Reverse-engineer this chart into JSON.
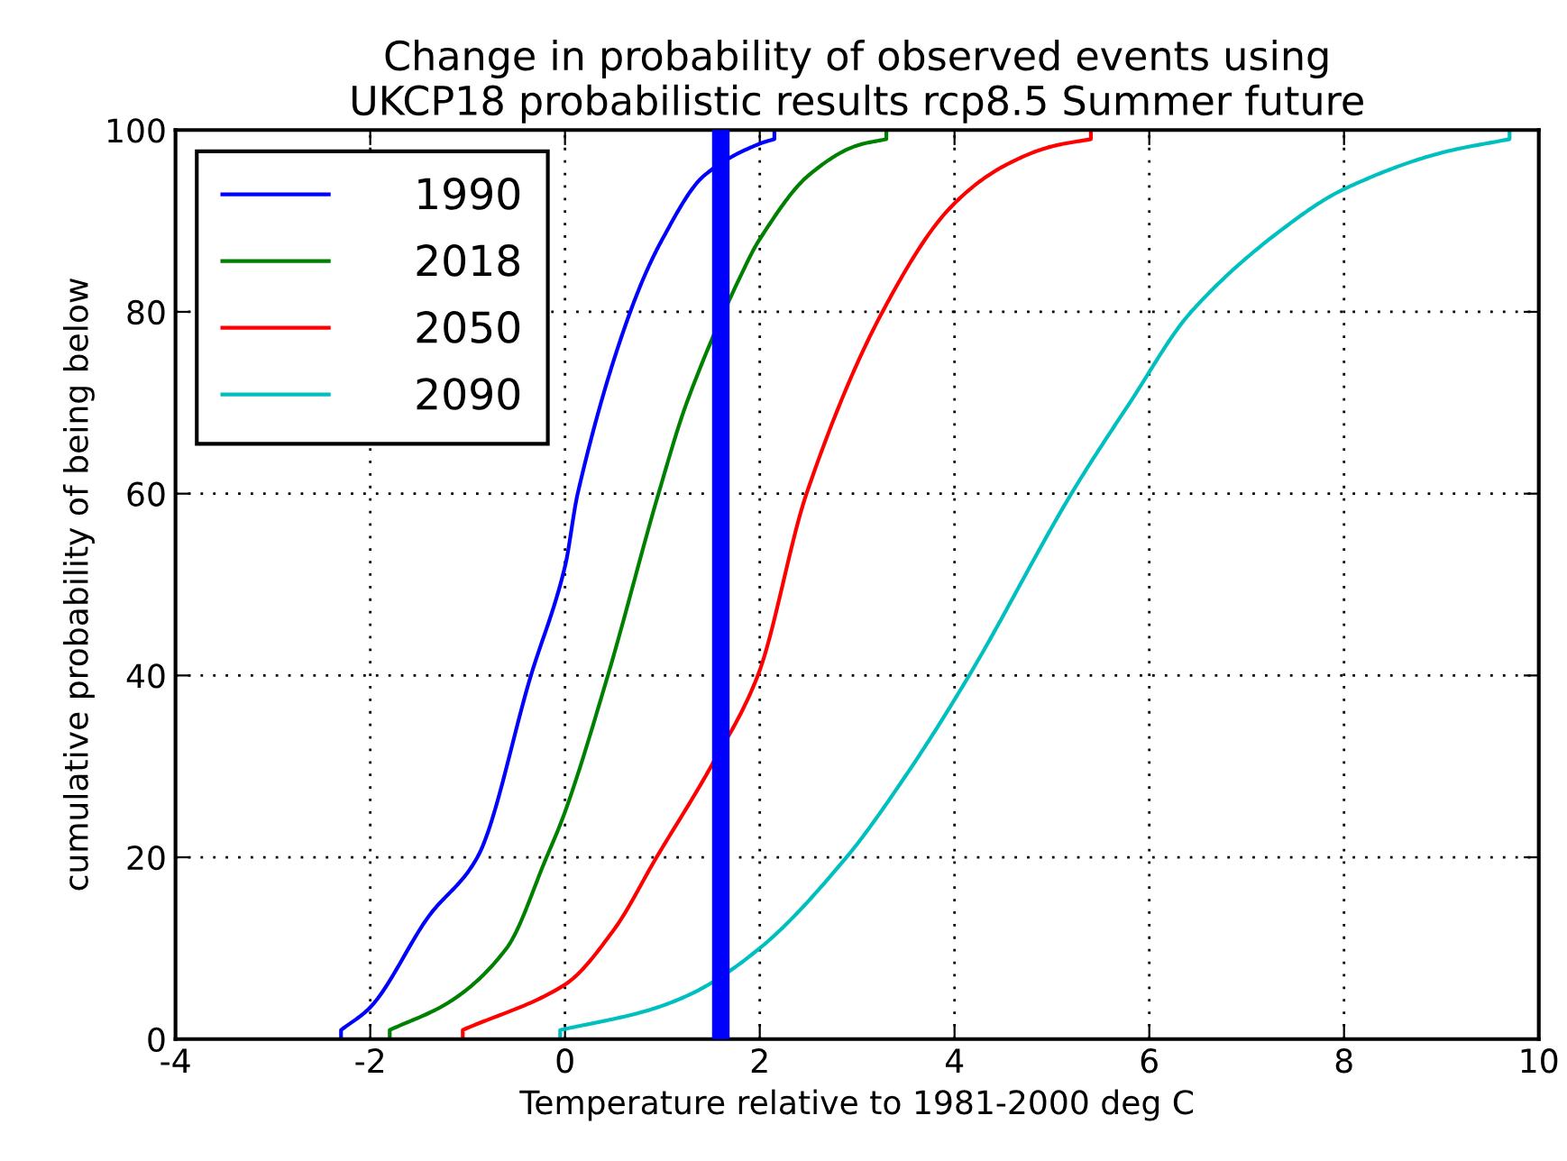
{
  "chart_data": {
    "type": "line",
    "title": "Change in probability of observed events using\nUKCP18 probabilistic results rcp8.5 Summer future",
    "xlabel": "Temperature relative to 1981-2000 deg C",
    "ylabel": "cumulative probability of being below",
    "series": [
      {
        "name": "1990",
        "color": "#0000ff",
        "x": [
          -2.3,
          -2.3,
          -2.0,
          -1.4,
          -0.9,
          -0.35,
          0,
          0.13,
          0.67,
          1.0,
          1.43,
          2.0,
          2.15,
          2.15
        ],
        "values": [
          0,
          1,
          3.5,
          13.5,
          20,
          40,
          52,
          60,
          80,
          88,
          95,
          98.5,
          99,
          100
        ]
      },
      {
        "name": "2018",
        "color": "#008000",
        "x": [
          -1.8,
          -1.8,
          -1.2,
          -0.6,
          -0.19,
          0,
          0.44,
          0.96,
          1.25,
          1.85,
          2.0,
          2.5,
          3.0,
          3.3,
          3.3
        ],
        "values": [
          0,
          1,
          4,
          10,
          20,
          25,
          40,
          60,
          70,
          85,
          88,
          95,
          98.3,
          99,
          100
        ]
      },
      {
        "name": "2050",
        "color": "#ff0000",
        "x": [
          -1.05,
          -1.05,
          0,
          0.5,
          0.94,
          1.5,
          1.98,
          2.48,
          3.26,
          3.96,
          4.5,
          5.0,
          5.4,
          5.4
        ],
        "values": [
          0,
          1,
          6,
          12,
          20,
          30,
          40,
          60,
          80,
          91.5,
          96,
          98.2,
          99,
          100
        ]
      },
      {
        "name": "2090",
        "color": "#00bfbf",
        "x": [
          -0.05,
          -0.05,
          0.8,
          1.3,
          2.0,
          2.89,
          3.5,
          4.15,
          5.2,
          5.8,
          6.43,
          7.48,
          8.0,
          9.0,
          9.7,
          9.7
        ],
        "values": [
          0,
          1,
          3,
          5,
          10,
          20,
          29,
          40,
          60,
          70,
          80,
          90,
          93.5,
          97.5,
          99,
          100
        ]
      }
    ],
    "ref_lines": [
      {
        "axis": "x",
        "value": 1.6,
        "label": null,
        "color": "#0000ff"
      }
    ],
    "xlim": [
      -4,
      10
    ],
    "xticks": [
      -4,
      -2,
      0,
      2,
      4,
      6,
      8,
      10
    ],
    "ylim": [
      0,
      100
    ],
    "yticks": [
      0,
      20,
      40,
      60,
      80,
      100
    ],
    "grid": true,
    "legend": "top left",
    "line_style": "solid",
    "marker": "none"
  }
}
